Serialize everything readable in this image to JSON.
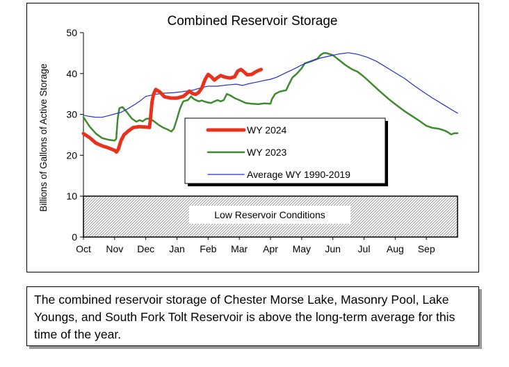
{
  "chart_data": {
    "type": "line",
    "title": "Combined Reservoir Storage",
    "xlabel": "",
    "ylabel": "Billions of Gallons of Active Storage",
    "ylim": [
      0,
      50
    ],
    "yticks": [
      0,
      10,
      20,
      30,
      40,
      50
    ],
    "month_labels": [
      "Oct",
      "Nov",
      "Dec",
      "Jan",
      "Feb",
      "Mar",
      "Apr",
      "May",
      "Jun",
      "Jul",
      "Aug",
      "Sep"
    ],
    "x_unit": "months since Oct 1",
    "xlim": [
      0,
      12
    ],
    "shaded_region": {
      "label": "Low Reservoir Conditions",
      "y_from": 0,
      "y_to": 10
    },
    "legend": {
      "position": "center",
      "entries": [
        "WY 2024",
        "WY 2023",
        "Average WY 1990-2019"
      ]
    },
    "series": [
      {
        "name": "WY 2024",
        "color": "#e8321e",
        "width": 5,
        "points": [
          [
            0,
            25.3
          ],
          [
            0.2,
            24.3
          ],
          [
            0.4,
            23
          ],
          [
            0.6,
            22.3
          ],
          [
            0.8,
            21.8
          ],
          [
            1.0,
            21.2
          ],
          [
            1.06,
            20.8
          ],
          [
            1.12,
            21.5
          ],
          [
            1.2,
            23.5
          ],
          [
            1.3,
            25
          ],
          [
            1.45,
            26
          ],
          [
            1.6,
            26.8
          ],
          [
            1.8,
            27
          ],
          [
            2.0,
            26.9
          ],
          [
            2.12,
            26.8
          ],
          [
            2.15,
            29
          ],
          [
            2.2,
            33
          ],
          [
            2.25,
            35
          ],
          [
            2.32,
            36.1
          ],
          [
            2.45,
            35.5
          ],
          [
            2.6,
            34.3
          ],
          [
            2.8,
            34
          ],
          [
            3.0,
            34
          ],
          [
            3.2,
            34.4
          ],
          [
            3.3,
            35
          ],
          [
            3.4,
            35.7
          ],
          [
            3.5,
            35.1
          ],
          [
            3.6,
            34.9
          ],
          [
            3.7,
            35.4
          ],
          [
            3.8,
            36.5
          ],
          [
            3.9,
            38.5
          ],
          [
            4.0,
            39.8
          ],
          [
            4.1,
            39.2
          ],
          [
            4.2,
            38.4
          ],
          [
            4.3,
            39
          ],
          [
            4.4,
            39.5
          ],
          [
            4.55,
            39.1
          ],
          [
            4.7,
            38.9
          ],
          [
            4.85,
            39.2
          ],
          [
            4.95,
            40.6
          ],
          [
            5.05,
            41
          ],
          [
            5.15,
            40.4
          ],
          [
            5.25,
            39.7
          ],
          [
            5.4,
            39.8
          ],
          [
            5.5,
            40.3
          ],
          [
            5.6,
            40.7
          ],
          [
            5.7,
            41
          ]
        ]
      },
      {
        "name": "WY 2023",
        "color": "#3d8b2e",
        "width": 2.5,
        "points": [
          [
            0,
            29.3
          ],
          [
            0.2,
            27
          ],
          [
            0.4,
            25.3
          ],
          [
            0.6,
            24.2
          ],
          [
            0.8,
            23.8
          ],
          [
            1.0,
            23.6
          ],
          [
            1.05,
            24
          ],
          [
            1.1,
            29
          ],
          [
            1.15,
            31.5
          ],
          [
            1.25,
            31.8
          ],
          [
            1.4,
            30.5
          ],
          [
            1.55,
            29
          ],
          [
            1.7,
            28.2
          ],
          [
            1.8,
            28.6
          ],
          [
            1.9,
            28.3
          ],
          [
            2.0,
            28.9
          ],
          [
            2.1,
            29
          ],
          [
            2.25,
            28.4
          ],
          [
            2.4,
            27.5
          ],
          [
            2.55,
            26.8
          ],
          [
            2.7,
            26.3
          ],
          [
            2.82,
            25.8
          ],
          [
            2.9,
            26.5
          ],
          [
            3.0,
            28.9
          ],
          [
            3.1,
            31.5
          ],
          [
            3.2,
            33.2
          ],
          [
            3.35,
            33.5
          ],
          [
            3.45,
            34.4
          ],
          [
            3.55,
            33.7
          ],
          [
            3.7,
            33.2
          ],
          [
            3.8,
            33.4
          ],
          [
            3.9,
            33.1
          ],
          [
            4.0,
            32.9
          ],
          [
            4.1,
            32.8
          ],
          [
            4.2,
            33.2
          ],
          [
            4.3,
            33.5
          ],
          [
            4.4,
            33.2
          ],
          [
            4.5,
            33.5
          ],
          [
            4.6,
            35
          ],
          [
            4.7,
            34.7
          ],
          [
            4.85,
            34
          ],
          [
            5.0,
            33.5
          ],
          [
            5.2,
            32.8
          ],
          [
            5.4,
            32.6
          ],
          [
            5.6,
            32.5
          ],
          [
            5.8,
            32.7
          ],
          [
            6.0,
            32.6
          ],
          [
            6.05,
            33.8
          ],
          [
            6.15,
            35
          ],
          [
            6.3,
            35.6
          ],
          [
            6.5,
            35.9
          ],
          [
            6.6,
            37.5
          ],
          [
            6.7,
            39
          ],
          [
            6.85,
            40
          ],
          [
            7.0,
            41.3
          ],
          [
            7.1,
            42.5
          ],
          [
            7.3,
            43
          ],
          [
            7.5,
            43.6
          ],
          [
            7.6,
            44.5
          ],
          [
            7.7,
            45
          ],
          [
            7.8,
            45
          ],
          [
            8.0,
            44.5
          ],
          [
            8.2,
            43.3
          ],
          [
            8.4,
            42.1
          ],
          [
            8.6,
            41.1
          ],
          [
            8.8,
            40.4
          ],
          [
            9.0,
            39.2
          ],
          [
            9.2,
            37.8
          ],
          [
            9.5,
            35.7
          ],
          [
            9.8,
            33.7
          ],
          [
            10.0,
            32.5
          ],
          [
            10.3,
            30.8
          ],
          [
            10.5,
            29.8
          ],
          [
            10.8,
            28.3
          ],
          [
            11.0,
            27.2
          ],
          [
            11.2,
            26.7
          ],
          [
            11.4,
            26.5
          ],
          [
            11.6,
            26
          ],
          [
            11.7,
            25.6
          ],
          [
            11.8,
            25.1
          ],
          [
            11.9,
            25.4
          ],
          [
            12.0,
            25.4
          ]
        ]
      },
      {
        "name": "Average WY 1990-2019",
        "color": "#1d2fd9",
        "width": 1.2,
        "points": [
          [
            0,
            29.8
          ],
          [
            0.2,
            29.5
          ],
          [
            0.4,
            29.3
          ],
          [
            0.6,
            29.3
          ],
          [
            0.8,
            29.7
          ],
          [
            1.0,
            30.1
          ],
          [
            1.2,
            30.5
          ],
          [
            1.4,
            31.3
          ],
          [
            1.6,
            32.2
          ],
          [
            1.8,
            33.2
          ],
          [
            2.0,
            34.4
          ],
          [
            2.3,
            34.9
          ],
          [
            2.6,
            35.2
          ],
          [
            2.9,
            35.3
          ],
          [
            3.2,
            35.6
          ],
          [
            3.5,
            35.9
          ],
          [
            3.8,
            36.6
          ],
          [
            4.0,
            36.9
          ],
          [
            4.3,
            36.9
          ],
          [
            4.6,
            37.2
          ],
          [
            4.9,
            37.4
          ],
          [
            5.1,
            37.1
          ],
          [
            5.3,
            37.5
          ],
          [
            5.5,
            37.8
          ],
          [
            5.8,
            38.3
          ],
          [
            6.0,
            38.6
          ],
          [
            6.2,
            39.1
          ],
          [
            6.5,
            40.2
          ],
          [
            6.8,
            41.3
          ],
          [
            7.0,
            42.1
          ],
          [
            7.3,
            43
          ],
          [
            7.6,
            43.8
          ],
          [
            7.9,
            44.3
          ],
          [
            8.2,
            44.8
          ],
          [
            8.5,
            45.1
          ],
          [
            8.8,
            44.7
          ],
          [
            9.1,
            44
          ],
          [
            9.4,
            43
          ],
          [
            9.7,
            41.6
          ],
          [
            10.0,
            40.2
          ],
          [
            10.3,
            38.8
          ],
          [
            10.6,
            37.1
          ],
          [
            10.9,
            35.5
          ],
          [
            11.2,
            34
          ],
          [
            11.5,
            32.6
          ],
          [
            11.8,
            31.2
          ],
          [
            12.0,
            30.3
          ]
        ]
      }
    ]
  },
  "caption": "The combined reservoir storage of Chester Morse Lake, Masonry Pool, Lake Youngs, and South Fork Tolt Reservoir is above the long-term average for this time of the year."
}
